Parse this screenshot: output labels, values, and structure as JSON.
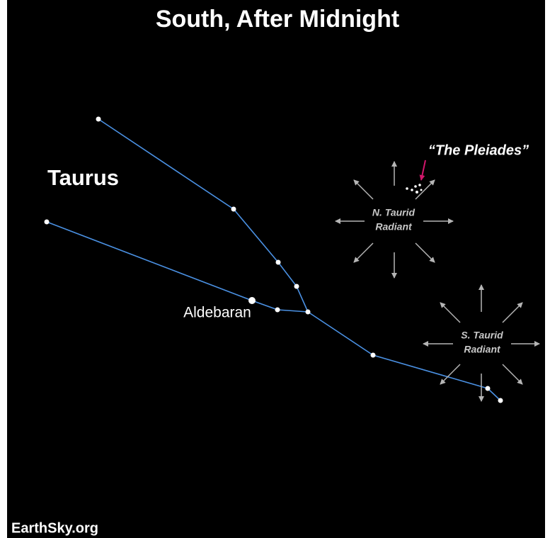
{
  "title": "South, After Midnight",
  "constellation": "Taurus",
  "star_labels": [
    "Aldebaran"
  ],
  "cluster_label": "“The Pleiades”",
  "radiants": [
    {
      "lines": [
        "N. Taurid",
        "Radiant"
      ]
    },
    {
      "lines": [
        "S. Taurid",
        "Radiant"
      ]
    }
  ],
  "credit": "EarthSky.org"
}
